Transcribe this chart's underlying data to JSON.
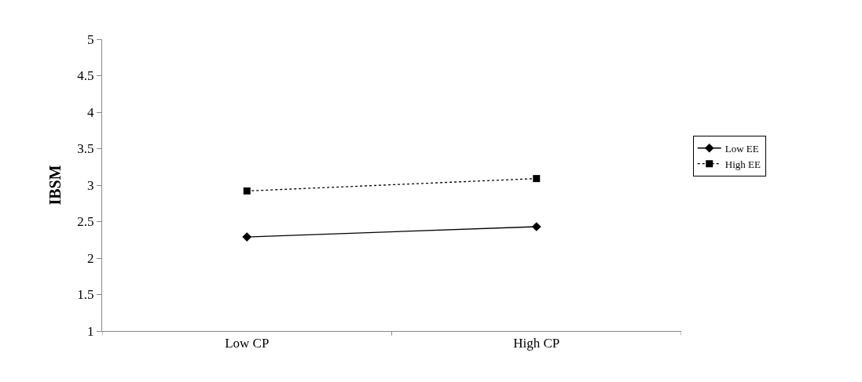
{
  "chart_data": {
    "type": "line",
    "ylabel": "IBSM",
    "categories": [
      "Low CP",
      "High CP"
    ],
    "series": [
      {
        "name": "Low EE",
        "color": "#000000",
        "values": [
          2.29,
          2.43
        ],
        "marker": "diamond",
        "line_style": "solid"
      },
      {
        "name": "High EE",
        "color": "#000000",
        "values": [
          2.92,
          3.09
        ],
        "marker": "square",
        "line_style": "dotted"
      }
    ],
    "ylim": [
      1,
      5
    ],
    "yticks": [
      1,
      1.5,
      2,
      2.5,
      3,
      3.5,
      4,
      4.5,
      5
    ],
    "legend": "right"
  }
}
